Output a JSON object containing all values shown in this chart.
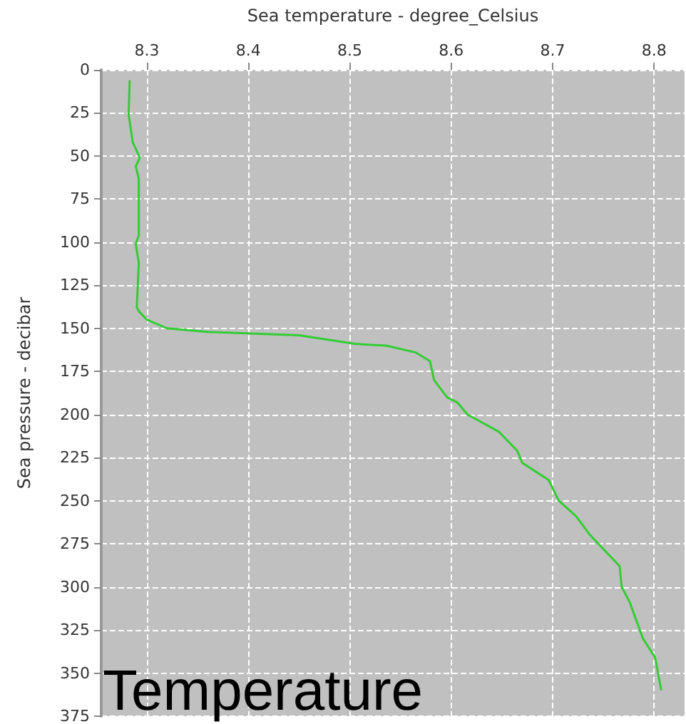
{
  "chart_data": {
    "type": "line",
    "xlabel": "Sea temperature - degree_Celsius",
    "ylabel": "Sea pressure - decibar",
    "annotations": [
      "Temperature"
    ],
    "xlim": [
      8.255,
      8.83
    ],
    "xticks": [
      8.3,
      8.4,
      8.5,
      8.6,
      8.7,
      8.8
    ],
    "ylim": [
      375,
      0
    ],
    "yticks": [
      0,
      25,
      50,
      75,
      100,
      125,
      150,
      175,
      200,
      225,
      250,
      275,
      300,
      325,
      350,
      375
    ],
    "grid": true,
    "marker": "none",
    "line_style": "solid",
    "series": [
      {
        "color": "#33cc33",
        "x": [
          8.283,
          8.282,
          8.286,
          8.293,
          8.289,
          8.292,
          8.292,
          8.289,
          8.292,
          8.29,
          8.292,
          8.3,
          8.32,
          8.36,
          8.45,
          8.505,
          8.536,
          8.565,
          8.579,
          8.583,
          8.596,
          8.606,
          8.616,
          8.647,
          8.665,
          8.67,
          8.696,
          8.706,
          8.723,
          8.737,
          8.766,
          8.768,
          8.776,
          8.789,
          8.801,
          8.807
        ],
        "values": [
          6,
          26,
          42,
          51,
          56,
          63,
          96,
          101,
          112,
          138,
          140,
          145,
          150,
          152,
          154,
          159,
          160,
          164,
          169,
          180,
          190,
          193,
          200,
          210,
          221,
          228,
          238,
          250,
          259,
          270,
          288,
          300,
          309,
          330,
          341,
          360
        ]
      }
    ]
  }
}
